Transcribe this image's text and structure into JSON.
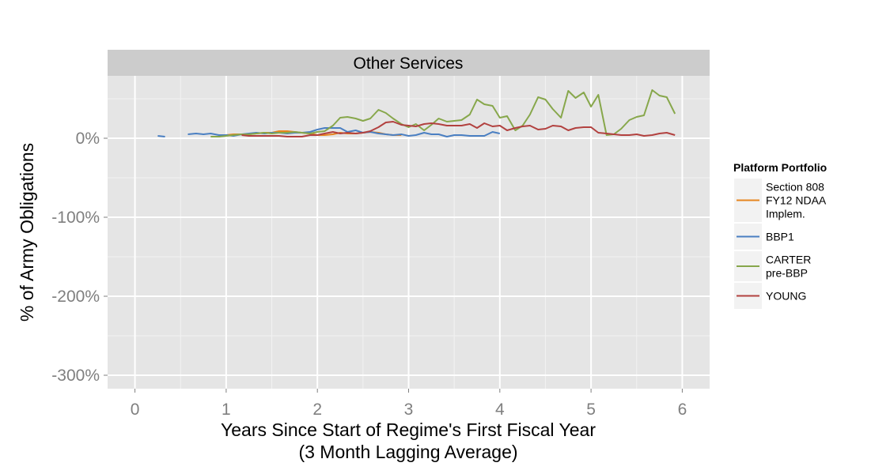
{
  "chart_data": {
    "type": "line",
    "facet_title": "Other Services",
    "xlabel_line1": "Years Since Start of Regime's First Fiscal Year",
    "xlabel_line2": "(3 Month Lagging Average)",
    "ylabel": "% of Army Obligations",
    "xlim": [
      -0.3,
      6.3
    ],
    "ylim": [
      -317,
      79
    ],
    "x_ticks": [
      0,
      1,
      2,
      3,
      4,
      5,
      6
    ],
    "x_tick_labels": [
      "0",
      "1",
      "2",
      "3",
      "4",
      "5",
      "6"
    ],
    "y_ticks": [
      0,
      -100,
      -200,
      -300
    ],
    "y_tick_labels": [
      "0%",
      "-100%",
      "-200%",
      "-300%"
    ],
    "grid": true,
    "legend_position": "right",
    "legend": {
      "title": "Platform Portfolio",
      "entries": [
        {
          "lines": [
            "Section 808",
            "FY12 NDAA",
            "Implem."
          ],
          "color": "#e6851f"
        },
        {
          "lines": [
            "BBP1"
          ],
          "color": "#4a7fc2"
        },
        {
          "lines": [
            "CARTER",
            "pre-BBP"
          ],
          "color": "#87a74b"
        },
        {
          "lines": [
            "YOUNG"
          ],
          "color": "#b2413f"
        }
      ]
    },
    "series": [
      {
        "name": "Section 808 FY12 NDAA Implem.",
        "color": "#e6851f",
        "points": [
          [
            0.92,
            2
          ],
          [
            1.0,
            4
          ],
          [
            1.08,
            5
          ],
          [
            1.17,
            5
          ],
          [
            1.25,
            5
          ],
          [
            1.33,
            6
          ],
          [
            1.42,
            7
          ],
          [
            1.5,
            7
          ],
          [
            1.58,
            9
          ],
          [
            1.67,
            9
          ],
          [
            1.75,
            8
          ],
          [
            1.83,
            7
          ],
          [
            1.92,
            6
          ],
          [
            2.0,
            4
          ],
          [
            2.08,
            4
          ],
          [
            2.17,
            5
          ],
          [
            2.25,
            7
          ],
          [
            2.33,
            6
          ],
          [
            2.42,
            6
          ],
          [
            2.5,
            7
          ],
          [
            2.58,
            8
          ],
          [
            2.67,
            7
          ],
          [
            2.75,
            5
          ],
          [
            2.83,
            4
          ],
          [
            2.92,
            4
          ]
        ]
      },
      {
        "name": "BBP1",
        "color": "#4a7fc2",
        "segments": [
          [
            [
              0.25,
              3
            ],
            [
              0.33,
              2
            ]
          ],
          [
            [
              0.58,
              5
            ],
            [
              0.67,
              6
            ],
            [
              0.75,
              5
            ],
            [
              0.83,
              6
            ],
            [
              0.92,
              4
            ],
            [
              1.0,
              4
            ],
            [
              1.08,
              3
            ],
            [
              1.17,
              5
            ],
            [
              1.25,
              6
            ],
            [
              1.33,
              7
            ],
            [
              1.42,
              6
            ],
            [
              1.5,
              7
            ],
            [
              1.58,
              7
            ],
            [
              1.67,
              6
            ],
            [
              1.75,
              7
            ],
            [
              1.83,
              7
            ],
            [
              1.92,
              8
            ],
            [
              2.0,
              11
            ],
            [
              2.08,
              13
            ],
            [
              2.17,
              13
            ],
            [
              2.25,
              13
            ],
            [
              2.33,
              8
            ],
            [
              2.42,
              10
            ],
            [
              2.5,
              7
            ],
            [
              2.58,
              8
            ],
            [
              2.67,
              6
            ],
            [
              2.75,
              5
            ],
            [
              2.83,
              4
            ],
            [
              2.92,
              5
            ],
            [
              3.0,
              3
            ],
            [
              3.08,
              4
            ],
            [
              3.17,
              7
            ],
            [
              3.25,
              5
            ],
            [
              3.33,
              5
            ],
            [
              3.42,
              2
            ],
            [
              3.5,
              4
            ],
            [
              3.58,
              4
            ],
            [
              3.67,
              3
            ],
            [
              3.75,
              3
            ],
            [
              3.83,
              3
            ],
            [
              3.92,
              8
            ],
            [
              4.0,
              6
            ]
          ]
        ]
      },
      {
        "name": "CARTER pre-BBP",
        "color": "#87a74b",
        "points": [
          [
            0.83,
            2
          ],
          [
            0.92,
            2
          ],
          [
            1.0,
            3
          ],
          [
            1.08,
            4
          ],
          [
            1.17,
            5
          ],
          [
            1.25,
            5
          ],
          [
            1.33,
            6
          ],
          [
            1.42,
            7
          ],
          [
            1.5,
            6
          ],
          [
            1.58,
            7
          ],
          [
            1.67,
            7
          ],
          [
            1.75,
            8
          ],
          [
            1.83,
            7
          ],
          [
            1.92,
            6
          ],
          [
            2.0,
            8
          ],
          [
            2.08,
            9
          ],
          [
            2.17,
            16
          ],
          [
            2.25,
            26
          ],
          [
            2.33,
            27
          ],
          [
            2.42,
            25
          ],
          [
            2.5,
            22
          ],
          [
            2.58,
            25
          ],
          [
            2.67,
            36
          ],
          [
            2.75,
            32
          ],
          [
            2.83,
            25
          ],
          [
            2.92,
            18
          ],
          [
            3.0,
            14
          ],
          [
            3.08,
            18
          ],
          [
            3.17,
            10
          ],
          [
            3.25,
            17
          ],
          [
            3.33,
            25
          ],
          [
            3.42,
            21
          ],
          [
            3.5,
            22
          ],
          [
            3.58,
            23
          ],
          [
            3.67,
            30
          ],
          [
            3.75,
            49
          ],
          [
            3.83,
            43
          ],
          [
            3.92,
            41
          ],
          [
            4.0,
            26
          ],
          [
            4.08,
            28
          ],
          [
            4.17,
            10
          ],
          [
            4.25,
            16
          ],
          [
            4.33,
            30
          ],
          [
            4.42,
            52
          ],
          [
            4.5,
            49
          ],
          [
            4.58,
            37
          ],
          [
            4.67,
            26
          ],
          [
            4.75,
            60
          ],
          [
            4.83,
            51
          ],
          [
            4.92,
            58
          ],
          [
            5.0,
            40
          ],
          [
            5.08,
            55
          ],
          [
            5.17,
            4
          ],
          [
            5.25,
            5
          ],
          [
            5.33,
            12
          ],
          [
            5.42,
            23
          ],
          [
            5.5,
            27
          ],
          [
            5.58,
            29
          ],
          [
            5.67,
            61
          ],
          [
            5.75,
            54
          ],
          [
            5.83,
            52
          ],
          [
            5.92,
            31
          ]
        ]
      },
      {
        "name": "YOUNG",
        "color": "#b2413f",
        "points": [
          [
            1.17,
            4
          ],
          [
            1.25,
            3
          ],
          [
            1.33,
            3
          ],
          [
            1.42,
            3
          ],
          [
            1.5,
            3
          ],
          [
            1.58,
            3
          ],
          [
            1.67,
            2
          ],
          [
            1.75,
            2
          ],
          [
            1.83,
            2
          ],
          [
            1.92,
            4
          ],
          [
            2.0,
            4
          ],
          [
            2.08,
            6
          ],
          [
            2.17,
            8
          ],
          [
            2.25,
            6
          ],
          [
            2.33,
            7
          ],
          [
            2.42,
            6
          ],
          [
            2.5,
            7
          ],
          [
            2.58,
            9
          ],
          [
            2.67,
            14
          ],
          [
            2.75,
            20
          ],
          [
            2.83,
            21
          ],
          [
            2.92,
            17
          ],
          [
            3.0,
            16
          ],
          [
            3.08,
            15
          ],
          [
            3.17,
            18
          ],
          [
            3.25,
            19
          ],
          [
            3.33,
            18
          ],
          [
            3.42,
            16
          ],
          [
            3.5,
            16
          ],
          [
            3.58,
            16
          ],
          [
            3.67,
            18
          ],
          [
            3.75,
            13
          ],
          [
            3.83,
            19
          ],
          [
            3.92,
            15
          ],
          [
            4.0,
            16
          ],
          [
            4.08,
            10
          ],
          [
            4.17,
            13
          ],
          [
            4.25,
            15
          ],
          [
            4.33,
            16
          ],
          [
            4.42,
            11
          ],
          [
            4.5,
            12
          ],
          [
            4.58,
            16
          ],
          [
            4.67,
            15
          ],
          [
            4.75,
            10
          ],
          [
            4.83,
            13
          ],
          [
            4.92,
            14
          ],
          [
            5.0,
            14
          ],
          [
            5.08,
            7
          ],
          [
            5.17,
            6
          ],
          [
            5.25,
            5
          ],
          [
            5.33,
            4
          ],
          [
            5.42,
            4
          ],
          [
            5.5,
            5
          ],
          [
            5.58,
            3
          ],
          [
            5.67,
            4
          ],
          [
            5.75,
            6
          ],
          [
            5.83,
            7
          ],
          [
            5.92,
            4
          ]
        ]
      }
    ]
  }
}
